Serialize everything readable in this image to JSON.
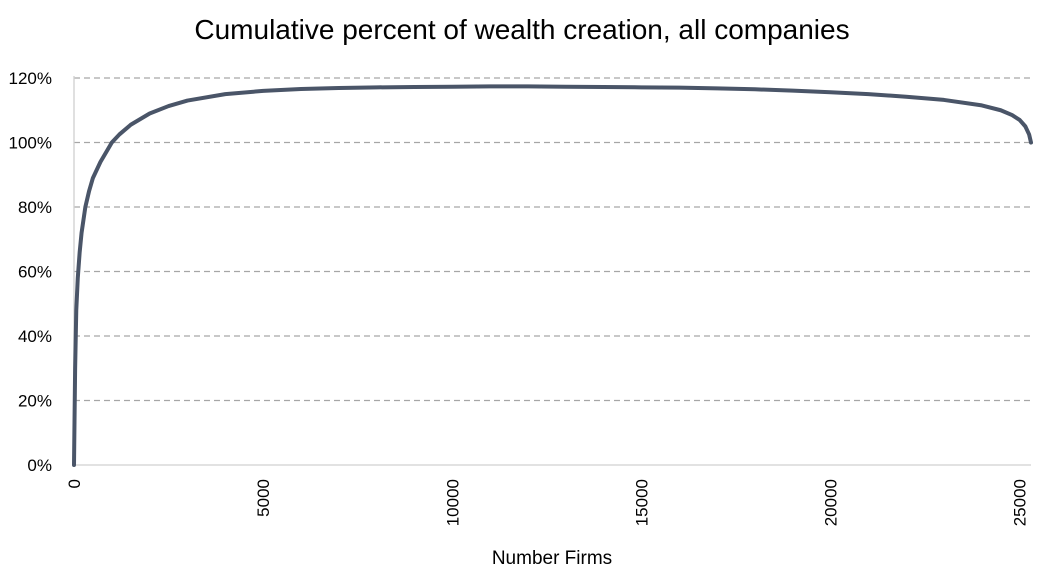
{
  "chart_data": {
    "type": "line",
    "title": "Cumulative percent of wealth creation, all companies",
    "xlabel": "Number Firms",
    "ylabel": "",
    "xlim": [
      0,
      25300
    ],
    "ylim": [
      0,
      120
    ],
    "x_ticks": [
      0,
      5000,
      10000,
      15000,
      20000,
      25000
    ],
    "x_tick_labels": [
      "0",
      "5000",
      "10000",
      "15000",
      "20000",
      "25000"
    ],
    "y_ticks": [
      0,
      20,
      40,
      60,
      80,
      100,
      120
    ],
    "y_tick_labels": [
      "0%",
      "20%",
      "40%",
      "60%",
      "80%",
      "100%",
      "120%"
    ],
    "grid": "horizontal dashed",
    "legend": "none",
    "series": [
      {
        "color": "#4a5568",
        "x": [
          0,
          30,
          60,
          100,
          150,
          200,
          300,
          400,
          500,
          700,
          900,
          1000,
          1200,
          1500,
          2000,
          2500,
          3000,
          4000,
          5000,
          6000,
          7000,
          8000,
          9000,
          10000,
          11000,
          12000,
          13000,
          14000,
          15000,
          16000,
          17000,
          18000,
          19000,
          20000,
          21000,
          22000,
          23000,
          24000,
          24500,
          24800,
          25000,
          25150,
          25250,
          25300
        ],
        "y": [
          0,
          30,
          48,
          58,
          66,
          72,
          80,
          85,
          89,
          94,
          98,
          100,
          102.5,
          105.5,
          109,
          111.3,
          113,
          115,
          116,
          116.6,
          116.9,
          117.1,
          117.2,
          117.3,
          117.4,
          117.4,
          117.3,
          117.2,
          117.1,
          117,
          116.8,
          116.5,
          116.1,
          115.6,
          115,
          114.2,
          113.2,
          111.5,
          110,
          108.5,
          107,
          105,
          102.5,
          100
        ]
      }
    ]
  }
}
